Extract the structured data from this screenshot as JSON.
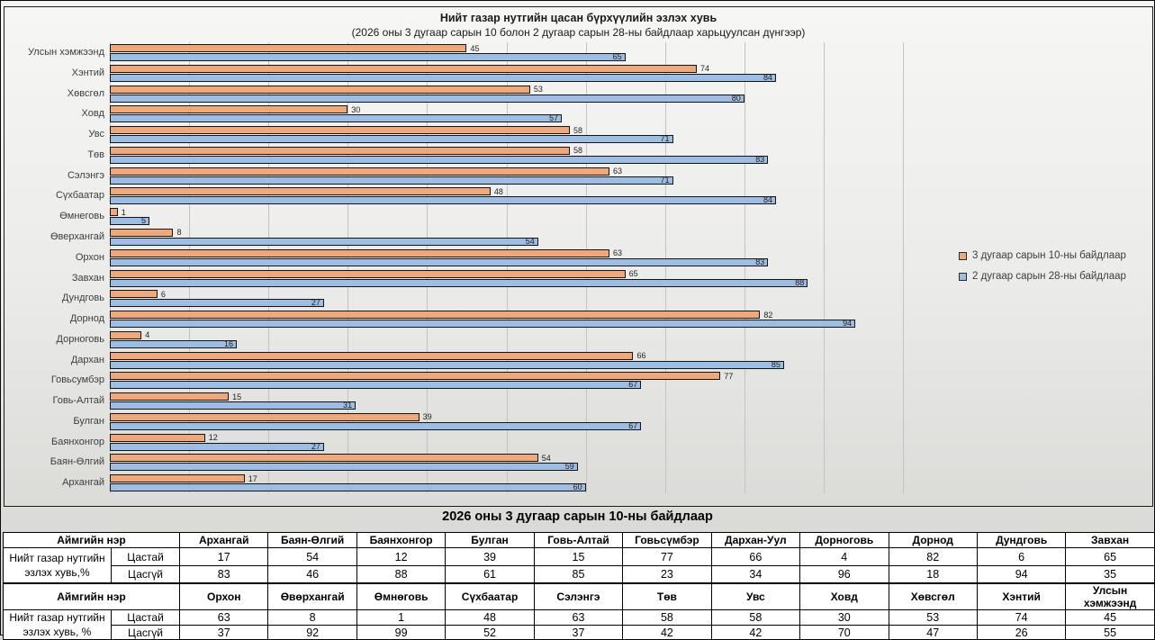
{
  "chart_data": {
    "type": "bar",
    "orientation": "horizontal",
    "title": "Нийт газар нутгийн цасан бүрхүүлийн эзлэх хувь",
    "subtitle": "(2026 оны 3 дугаар сарын 10 болон 2 дугаар сарын 28-ны байдлаар харьцуулсан дүнгээр)",
    "xlim": [
      0,
      100
    ],
    "xticks": [
      0,
      10,
      20,
      30,
      40,
      50,
      60,
      70,
      80,
      90,
      100
    ],
    "grid": "vertical",
    "legend_position": "right",
    "categories_top_to_bottom": [
      "Улсын хэмжээнд",
      "Хэнтий",
      "Хөвсгөл",
      "Ховд",
      "Увс",
      "Төв",
      "Сэлэнгэ",
      "Сүхбаатар",
      "Өмнеговь",
      "Өверхангай",
      "Орхон",
      "Завхан",
      "Дундговь",
      "Дорнод",
      "Дорноговь",
      "Дархан",
      "Говьсумбэр",
      "Говь-Алтай",
      "Булган",
      "Баянхонгор",
      "Баян-Өлгий",
      "Архангай"
    ],
    "series": [
      {
        "name": "3 дугаар сарын 10-ны байдлаар",
        "color": "#F0A878",
        "values": [
          45,
          74,
          53,
          30,
          58,
          58,
          63,
          48,
          1,
          8,
          63,
          65,
          6,
          82,
          4,
          66,
          77,
          15,
          39,
          12,
          54,
          17
        ]
      },
      {
        "name": "2 дугаар сарын 28-ны байдлаар",
        "color": "#9CBEE4",
        "values": [
          65,
          84,
          80,
          57,
          71,
          83,
          71,
          84,
          5,
          54,
          83,
          88,
          27,
          94,
          16,
          85,
          67,
          31,
          67,
          27,
          59,
          60
        ]
      }
    ]
  },
  "table": {
    "title": "2026 оны 3 дугаар сарын 10-ны байдлаар",
    "blocks": [
      {
        "corner_label": "Аймгийн нэр",
        "group_label": "Нийт газар нутгийн эзлэх хувь,%",
        "columns": [
          "Архангай",
          "Баян-Өлгий",
          "Баянхонгор",
          "Булган",
          "Говь-Алтай",
          "Говьсүмбэр",
          "Дархан-Уул",
          "Дорноговь",
          "Дорнод",
          "Дундговь",
          "Завхан"
        ],
        "rows": [
          {
            "label": "Цастай",
            "values": [
              17,
              54,
              12,
              39,
              15,
              77,
              66,
              4,
              82,
              6,
              65
            ]
          },
          {
            "label": "Цасгүй",
            "values": [
              83,
              46,
              88,
              61,
              85,
              23,
              34,
              96,
              18,
              94,
              35
            ]
          }
        ]
      },
      {
        "corner_label": "Аймгийн нэр",
        "group_label": "Нийт газар нутгийн эзлэх хувь, %",
        "columns": [
          "Орхон",
          "Өвөрхангай",
          "Өмнөговь",
          "Сүхбаатар",
          "Сэлэнгэ",
          "Төв",
          "Увс",
          "Ховд",
          "Хөвсгөл",
          "Хэнтий",
          "Улсын хэмжээнд"
        ],
        "rows": [
          {
            "label": "Цастай",
            "values": [
              63,
              8,
              1,
              48,
              63,
              58,
              58,
              30,
              53,
              74,
              45
            ]
          },
          {
            "label": "Цасгүй",
            "values": [
              37,
              92,
              99,
              52,
              37,
              42,
              42,
              70,
              47,
              26,
              55
            ]
          }
        ]
      }
    ]
  }
}
